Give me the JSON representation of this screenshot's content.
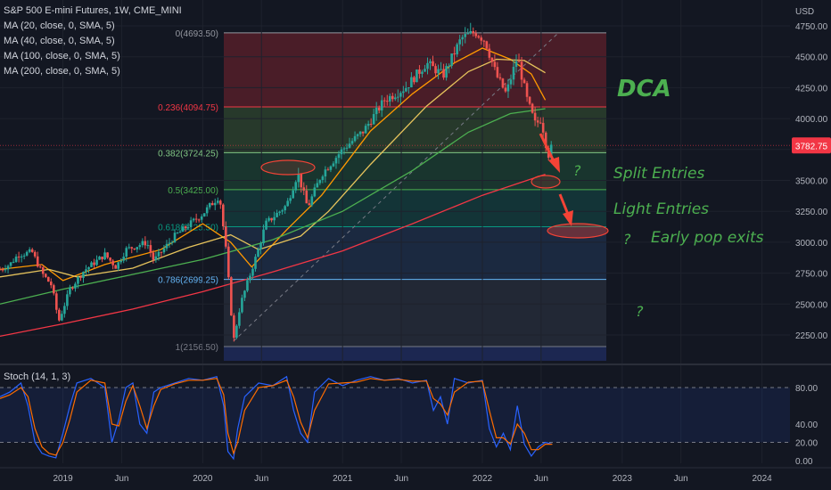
{
  "legend": {
    "symbol": "S&P 500 E-mini Futures, 1W, CME_MINI",
    "ma": [
      "MA (20, close, 0, SMA, 5)",
      "MA (40, close, 0, SMA, 5)",
      "MA (100, close, 0, SMA, 5)",
      "MA (200, close, 0, SMA, 5)"
    ]
  },
  "stoch_label": "Stoch (14, 1, 3)",
  "currency": "USD",
  "last_price": "3782.75",
  "colors": {
    "up": "#26a69a",
    "down": "#ef5350",
    "ma20": "#ff9800",
    "ma40": "#e6c35c",
    "ma100": "#4caf50",
    "ma200": "#f23645",
    "stoch_k": "#2962ff",
    "stoch_d": "#ff6d00",
    "annotation": "#4caf50",
    "marker": "#f44336"
  },
  "annotations": {
    "dca": "DCA",
    "split": "Split Entries",
    "light": "Light Entries",
    "early": "Early pop exits",
    "q": "?"
  },
  "chart_data": [
    {
      "type": "candlestick",
      "title": "S&P 500 E-mini Futures, 1W, CME_MINI",
      "ylabel": "USD",
      "y_ticks": [
        4750,
        4500,
        4250,
        4000,
        3750,
        3500,
        3250,
        3000,
        2750,
        2500,
        2250
      ],
      "ylim": [
        2160,
        4800
      ],
      "x_ticks": [
        "2019",
        "Jun",
        "2020",
        "Jun",
        "2021",
        "Jun",
        "2022",
        "Jun",
        "2023",
        "Jun",
        "2024"
      ],
      "x_tick_dates": [
        2019.0,
        2019.42,
        2020.0,
        2020.42,
        2021.0,
        2021.42,
        2022.0,
        2022.42,
        2023.0,
        2023.42,
        2024.0
      ],
      "xlim": [
        2018.55,
        2024.2
      ],
      "last_price": 3782.75,
      "price_anchors": [
        [
          2018.55,
          2780
        ],
        [
          2018.62,
          2820
        ],
        [
          2018.68,
          2900
        ],
        [
          2018.78,
          2920
        ],
        [
          2018.85,
          2750
        ],
        [
          2018.92,
          2650
        ],
        [
          2018.97,
          2360
        ],
        [
          2019.05,
          2620
        ],
        [
          2019.15,
          2770
        ],
        [
          2019.3,
          2900
        ],
        [
          2019.38,
          2800
        ],
        [
          2019.45,
          2940
        ],
        [
          2019.6,
          3000
        ],
        [
          2019.65,
          2850
        ],
        [
          2019.8,
          3050
        ],
        [
          2020.0,
          3230
        ],
        [
          2020.12,
          3380
        ],
        [
          2020.17,
          2900
        ],
        [
          2020.22,
          2200
        ],
        [
          2020.27,
          2500
        ],
        [
          2020.4,
          2950
        ],
        [
          2020.45,
          3150
        ],
        [
          2020.6,
          3300
        ],
        [
          2020.68,
          3560
        ],
        [
          2020.75,
          3280
        ],
        [
          2020.85,
          3550
        ],
        [
          2021.0,
          3750
        ],
        [
          2021.15,
          3900
        ],
        [
          2021.3,
          4150
        ],
        [
          2021.45,
          4250
        ],
        [
          2021.6,
          4450
        ],
        [
          2021.72,
          4350
        ],
        [
          2021.85,
          4650
        ],
        [
          2021.95,
          4700
        ],
        [
          2022.02,
          4630
        ],
        [
          2022.1,
          4350
        ],
        [
          2022.17,
          4200
        ],
        [
          2022.25,
          4500
        ],
        [
          2022.32,
          4150
        ],
        [
          2022.38,
          3950
        ],
        [
          2022.42,
          4000
        ],
        [
          2022.47,
          3700
        ],
        [
          2022.5,
          3782.75
        ]
      ],
      "series": [
        {
          "name": "MA (20, close, 0, SMA, 5)",
          "x": [
            2018.55,
            2018.85,
            2019.0,
            2019.3,
            2019.7,
            2020.0,
            2020.2,
            2020.35,
            2020.6,
            2020.85,
            2021.2,
            2021.5,
            2021.8,
            2022.0,
            2022.2,
            2022.35,
            2022.45
          ],
          "values": [
            2780,
            2820,
            2690,
            2820,
            2940,
            3150,
            3000,
            2800,
            3100,
            3380,
            3900,
            4200,
            4450,
            4570,
            4480,
            4360,
            4150
          ]
        },
        {
          "name": "MA (40, close, 0, SMA, 5)",
          "x": [
            2018.55,
            2018.9,
            2019.1,
            2019.5,
            2019.9,
            2020.2,
            2020.4,
            2020.7,
            2020.9,
            2021.2,
            2021.6,
            2021.9,
            2022.1,
            2022.3,
            2022.45
          ],
          "values": [
            2720,
            2780,
            2720,
            2790,
            2960,
            3060,
            2940,
            3050,
            3250,
            3630,
            4100,
            4380,
            4480,
            4470,
            4370
          ]
        },
        {
          "name": "MA (100, close, 0, SMA, 5)",
          "x": [
            2018.55,
            2019.0,
            2019.5,
            2020.0,
            2020.5,
            2021.0,
            2021.5,
            2021.9,
            2022.2,
            2022.45
          ],
          "values": [
            2500,
            2620,
            2740,
            2860,
            3020,
            3250,
            3580,
            3890,
            4040,
            4080
          ]
        },
        {
          "name": "MA (200, close, 0, SMA, 5)",
          "x": [
            2018.55,
            2019.0,
            2019.5,
            2020.0,
            2020.5,
            2021.0,
            2021.5,
            2022.0,
            2022.45
          ],
          "values": [
            2240,
            2340,
            2460,
            2600,
            2760,
            2930,
            3150,
            3380,
            3550
          ]
        }
      ],
      "fib_levels": [
        {
          "label": "0(4693.50)",
          "value": 4693.5
        },
        {
          "label": "0.236(4094.75)",
          "value": 4094.75
        },
        {
          "label": "0.382(3724.25)",
          "value": 3724.25
        },
        {
          "label": "0.5(3425.00)",
          "value": 3425.0
        },
        {
          "label": "0.618(3125.50)",
          "value": 3125.5
        },
        {
          "label": "0.786(2699.25)",
          "value": 2699.25
        },
        {
          "label": "1(2156.50)",
          "value": 2156.5
        }
      ],
      "trend_line": [
        [
          2020.22,
          2200
        ],
        [
          2022.55,
          4700
        ]
      ]
    },
    {
      "type": "line",
      "title": "Stoch (14, 1, 3)",
      "y_ticks": [
        80.0,
        40.0,
        20.0,
        0.0
      ],
      "y_tick_labels": [
        "80.00",
        "40.00",
        "20.00",
        "0.00"
      ],
      "ylim": [
        0,
        100
      ],
      "bands": [
        20,
        80
      ],
      "series": [
        {
          "name": "%K",
          "x": [
            2018.55,
            2018.62,
            2018.7,
            2018.75,
            2018.8,
            2018.85,
            2018.9,
            2018.95,
            2019.0,
            2019.05,
            2019.1,
            2019.2,
            2019.3,
            2019.35,
            2019.4,
            2019.45,
            2019.5,
            2019.55,
            2019.6,
            2019.65,
            2019.7,
            2019.8,
            2019.9,
            2020.0,
            2020.1,
            2020.15,
            2020.18,
            2020.22,
            2020.25,
            2020.3,
            2020.4,
            2020.5,
            2020.6,
            2020.65,
            2020.7,
            2020.75,
            2020.8,
            2020.9,
            2021.0,
            2021.1,
            2021.2,
            2021.3,
            2021.4,
            2021.5,
            2021.6,
            2021.65,
            2021.7,
            2021.75,
            2021.8,
            2021.9,
            2022.0,
            2022.05,
            2022.1,
            2022.15,
            2022.2,
            2022.25,
            2022.3,
            2022.35,
            2022.4,
            2022.45,
            2022.5
          ],
          "values": [
            70,
            75,
            85,
            60,
            20,
            8,
            5,
            3,
            30,
            60,
            85,
            90,
            80,
            20,
            45,
            80,
            85,
            40,
            30,
            75,
            80,
            85,
            90,
            88,
            92,
            60,
            10,
            2,
            35,
            70,
            85,
            82,
            92,
            55,
            30,
            20,
            75,
            90,
            82,
            88,
            92,
            88,
            90,
            85,
            88,
            55,
            70,
            40,
            90,
            85,
            88,
            35,
            15,
            30,
            12,
            60,
            18,
            5,
            15,
            20,
            18
          ]
        },
        {
          "name": "%D",
          "x": [
            2018.55,
            2018.62,
            2018.7,
            2018.75,
            2018.8,
            2018.85,
            2018.9,
            2018.95,
            2019.0,
            2019.05,
            2019.1,
            2019.2,
            2019.3,
            2019.35,
            2019.4,
            2019.45,
            2019.5,
            2019.55,
            2019.6,
            2019.65,
            2019.7,
            2019.8,
            2019.9,
            2020.0,
            2020.1,
            2020.15,
            2020.18,
            2020.22,
            2020.25,
            2020.3,
            2020.4,
            2020.5,
            2020.6,
            2020.65,
            2020.7,
            2020.75,
            2020.8,
            2020.9,
            2021.0,
            2021.1,
            2021.2,
            2021.3,
            2021.4,
            2021.5,
            2021.6,
            2021.65,
            2021.7,
            2021.75,
            2021.8,
            2021.9,
            2022.0,
            2022.05,
            2022.1,
            2022.15,
            2022.2,
            2022.25,
            2022.3,
            2022.35,
            2022.4,
            2022.45,
            2022.5
          ],
          "values": [
            68,
            72,
            80,
            70,
            35,
            15,
            8,
            6,
            20,
            45,
            75,
            88,
            85,
            40,
            38,
            65,
            82,
            60,
            35,
            60,
            78,
            84,
            88,
            88,
            90,
            72,
            30,
            8,
            20,
            55,
            80,
            82,
            88,
            70,
            42,
            25,
            55,
            84,
            85,
            86,
            90,
            88,
            89,
            87,
            87,
            68,
            62,
            50,
            75,
            86,
            87,
            55,
            25,
            25,
            18,
            40,
            30,
            12,
            12,
            18,
            18
          ]
        }
      ]
    }
  ]
}
